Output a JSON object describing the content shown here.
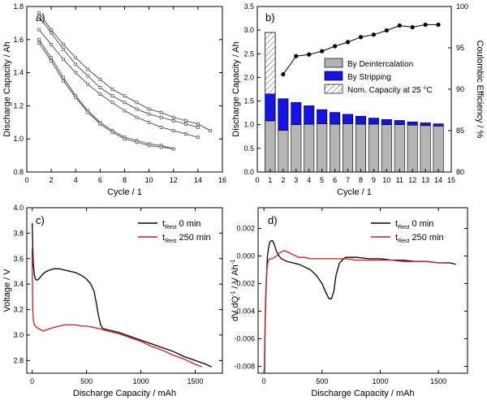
{
  "chart_data": [
    {
      "panel": "a)",
      "type": "line",
      "xlabel": "Cycle / 1",
      "ylabel": "Discharge Capacity / Ah",
      "xlim": [
        0,
        16
      ],
      "ylim": [
        0.8,
        1.8
      ],
      "xticks": [
        0,
        2,
        4,
        6,
        8,
        10,
        12,
        14,
        16
      ],
      "yticks": [
        0.8,
        1.0,
        1.2,
        1.4,
        1.6,
        1.8
      ],
      "series": [
        {
          "x": [
            1,
            2,
            3,
            4,
            5,
            6,
            7,
            8,
            9,
            10,
            11,
            12,
            13,
            14,
            15
          ],
          "values": [
            1.76,
            1.66,
            1.57,
            1.49,
            1.42,
            1.36,
            1.3,
            1.26,
            1.22,
            1.18,
            1.16,
            1.13,
            1.11,
            1.09,
            1.05
          ]
        },
        {
          "x": [
            1,
            2,
            3,
            4,
            5,
            6,
            7,
            8,
            9,
            10,
            11,
            12,
            13,
            14
          ],
          "values": [
            1.74,
            1.64,
            1.54,
            1.45,
            1.38,
            1.31,
            1.26,
            1.22,
            1.18,
            1.15,
            1.13,
            1.11,
            1.09,
            1.07
          ]
        },
        {
          "x": [
            1,
            2,
            3,
            4,
            5,
            6,
            7,
            8,
            9,
            10,
            11,
            12,
            13,
            14
          ],
          "values": [
            1.66,
            1.57,
            1.48,
            1.4,
            1.33,
            1.27,
            1.22,
            1.17,
            1.13,
            1.1,
            1.07,
            1.05,
            1.03,
            1.01
          ]
        },
        {
          "x": [
            1,
            2,
            3,
            4,
            5,
            6,
            7,
            8,
            9,
            10,
            11,
            12
          ],
          "values": [
            1.6,
            1.49,
            1.37,
            1.26,
            1.17,
            1.1,
            1.05,
            1.01,
            0.99,
            0.97,
            0.96,
            0.94
          ]
        },
        {
          "x": [
            1,
            2,
            3,
            4,
            5,
            6,
            7,
            8,
            9,
            10,
            11,
            12
          ],
          "values": [
            1.58,
            1.47,
            1.35,
            1.25,
            1.16,
            1.09,
            1.04,
            1.0,
            0.98,
            0.96,
            0.95,
            0.94
          ]
        }
      ],
      "color": "#555555"
    },
    {
      "panel": "b)",
      "type": "bar",
      "xlabel": "Cycle / 1",
      "ylabel": "Discharge Capacity / Ah",
      "ylabel_right": "Coulombic Efficiency / %",
      "xlim": [
        0,
        15
      ],
      "ylim": [
        0,
        3.5
      ],
      "ylim_right": [
        80,
        100
      ],
      "xticks": [
        0,
        1,
        2,
        3,
        4,
        5,
        6,
        7,
        8,
        9,
        10,
        11,
        12,
        13,
        14,
        15
      ],
      "yticks": [
        0.0,
        0.5,
        1.0,
        1.5,
        2.0,
        2.5,
        3.0,
        3.5
      ],
      "yticks_right": [
        80,
        85,
        90,
        95,
        100
      ],
      "categories": [
        1,
        2,
        3,
        4,
        5,
        6,
        7,
        8,
        9,
        10,
        11,
        12,
        13,
        14
      ],
      "series": [
        {
          "name": "By Deintercalation",
          "values": [
            1.08,
            0.88,
            1.0,
            1.01,
            1.02,
            1.01,
            1.02,
            1.01,
            1.01,
            1.0,
            1.0,
            0.99,
            0.98,
            0.97
          ],
          "color": "#b4b4b4"
        },
        {
          "name": "By Stripping",
          "values": [
            0.57,
            0.67,
            0.47,
            0.39,
            0.3,
            0.25,
            0.2,
            0.17,
            0.13,
            0.11,
            0.09,
            0.07,
            0.06,
            0.05
          ],
          "color": "#1414e6"
        },
        {
          "name": "Nom. Capacity at 25 °C",
          "values": [
            2.95
          ],
          "x": [
            1
          ],
          "pattern": "hatch"
        }
      ],
      "efficiency": {
        "x": [
          2,
          3,
          4,
          5,
          6,
          7,
          8,
          9,
          10,
          11,
          12,
          13,
          14
        ],
        "values": [
          91.8,
          94.0,
          94.2,
          94.6,
          95.2,
          95.7,
          96.3,
          96.6,
          97.1,
          97.7,
          97.5,
          97.8,
          97.8
        ]
      },
      "legend": "center-right"
    },
    {
      "panel": "c)",
      "type": "line",
      "xlabel": "Discharge Capacity / mAh",
      "ylabel": "Voltage / V",
      "xlim": [
        -50,
        1750
      ],
      "ylim": [
        2.7,
        4.0
      ],
      "xticks": [
        0,
        500,
        1000,
        1500
      ],
      "yticks": [
        2.8,
        3.0,
        3.2,
        3.4,
        3.6,
        3.8,
        4.0
      ],
      "series": [
        {
          "name_main": "t",
          "name_sub": "Rest",
          "name_tail": " 0 min",
          "color": "#000000",
          "x": [
            0,
            2,
            5,
            10,
            20,
            30,
            45,
            60,
            80,
            100,
            130,
            160,
            200,
            250,
            300,
            350,
            400,
            450,
            500,
            540,
            570,
            590,
            610,
            630,
            650,
            700,
            800,
            900,
            1000,
            1100,
            1200,
            1300,
            1400,
            1500,
            1600,
            1650
          ],
          "values": [
            3.88,
            3.8,
            3.68,
            3.56,
            3.47,
            3.44,
            3.43,
            3.44,
            3.46,
            3.48,
            3.5,
            3.51,
            3.52,
            3.52,
            3.51,
            3.5,
            3.49,
            3.47,
            3.44,
            3.4,
            3.34,
            3.25,
            3.15,
            3.08,
            3.05,
            3.04,
            3.02,
            2.99,
            2.96,
            2.93,
            2.9,
            2.87,
            2.83,
            2.8,
            2.77,
            2.75
          ]
        },
        {
          "name_main": "t",
          "name_sub": "Rest",
          "name_tail": " 250 min",
          "color": "#d11a1a",
          "x": [
            0,
            2,
            5,
            10,
            20,
            30,
            40,
            60,
            80,
            100,
            130,
            160,
            200,
            250,
            300,
            350,
            400,
            450,
            500,
            560,
            620,
            700,
            800,
            900,
            1000,
            1100,
            1200,
            1300,
            1400,
            1500,
            1560
          ],
          "values": [
            3.68,
            3.4,
            3.2,
            3.12,
            3.08,
            3.07,
            3.06,
            3.05,
            3.04,
            3.03,
            3.04,
            3.05,
            3.06,
            3.07,
            3.08,
            3.08,
            3.08,
            3.07,
            3.07,
            3.06,
            3.05,
            3.03,
            3.01,
            2.98,
            2.95,
            2.91,
            2.88,
            2.84,
            2.81,
            2.77,
            2.75
          ]
        }
      ],
      "legend": "top-right"
    },
    {
      "panel": "d)",
      "type": "line",
      "xlabel": "Discharge Capacity / mAh",
      "ylabel_main": "dV dQ",
      "ylabel_sup1": "-1",
      "ylabel_mid": " / V Ah",
      "ylabel_sup2": "-1",
      "xlim": [
        -50,
        1750
      ],
      "ylim": [
        -0.0085,
        0.0035
      ],
      "xticks": [
        0,
        500,
        1000,
        1500
      ],
      "yticks": [
        -0.008,
        -0.006,
        -0.004,
        -0.002,
        0.0,
        0.002
      ],
      "ytick_labels": [
        "-0.008",
        "-0.006",
        "-0.004",
        "-0.002",
        "0.000",
        "0.002"
      ],
      "series": [
        {
          "name_main": "t",
          "name_sub": "Rest",
          "name_tail": " 0 min",
          "color": "#000000",
          "x": [
            5,
            10,
            20,
            30,
            40,
            50,
            60,
            75,
            90,
            110,
            130,
            150,
            200,
            250,
            300,
            350,
            400,
            450,
            500,
            530,
            560,
            580,
            600,
            620,
            650,
            700,
            800,
            900,
            1000,
            1100,
            1200,
            1300,
            1400,
            1500,
            1600,
            1650
          ],
          "values": [
            -0.0085,
            -0.005,
            -0.002,
            0.0,
            0.0006,
            0.001,
            0.0011,
            0.0011,
            0.0008,
            0.0003,
            0.0,
            -0.0002,
            -0.0004,
            -0.0005,
            -0.0006,
            -0.0008,
            -0.001,
            -0.0014,
            -0.002,
            -0.0026,
            -0.0031,
            -0.0031,
            -0.0026,
            -0.0014,
            -0.0005,
            -0.0001,
            -0.0001,
            -0.0002,
            -0.0002,
            -0.0003,
            -0.0003,
            -0.0004,
            -0.0004,
            -0.0005,
            -0.0005,
            -0.0006
          ]
        },
        {
          "name_main": "t",
          "name_sub": "Rest",
          "name_tail": " 250 min",
          "color": "#d11a1a",
          "x": [
            3,
            8,
            15,
            25,
            35,
            50,
            70,
            90,
            110,
            130,
            150,
            180,
            200,
            250,
            300,
            350,
            400,
            500,
            600,
            700,
            800,
            900,
            1000,
            1100,
            1200,
            1300,
            1400,
            1500,
            1560
          ],
          "values": [
            -0.0085,
            -0.006,
            -0.003,
            -0.001,
            -0.0004,
            -0.0002,
            -0.0002,
            -0.0001,
            0.0,
            0.0002,
            0.0003,
            0.0004,
            0.0003,
            0.0001,
            -0.0001,
            -0.0001,
            -0.0002,
            -0.0002,
            -0.0002,
            -0.0002,
            -0.0003,
            -0.0003,
            -0.0003,
            -0.0003,
            -0.0004,
            -0.0004,
            -0.0004,
            -0.0005,
            -0.0005
          ]
        }
      ],
      "legend": "top-right"
    }
  ]
}
